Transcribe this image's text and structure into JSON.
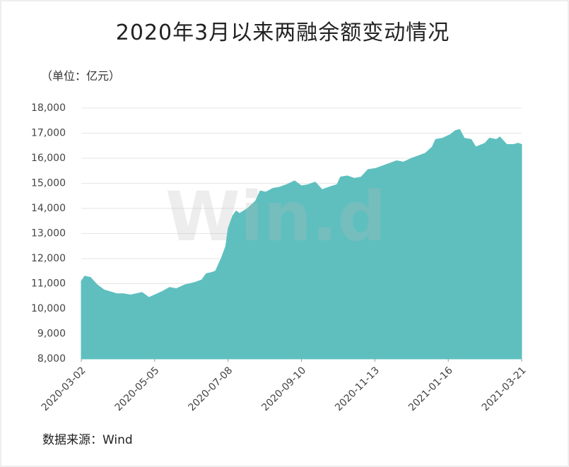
{
  "chart_data": {
    "type": "area",
    "title": "2020年3月以来两融余额变动情况",
    "unit_label": "（单位：亿元）",
    "source": "数据来源：Wind",
    "watermark": "Win.d",
    "color": "#5fbfbf",
    "grid": true,
    "x": [
      "2020-03-02",
      "2020-03-05",
      "2020-03-10",
      "2020-03-13",
      "2020-03-16",
      "2020-03-22",
      "2020-04-02",
      "2020-04-08",
      "2020-04-14",
      "2020-04-24",
      "2020-04-30",
      "2020-05-12",
      "2020-05-18",
      "2020-05-24",
      "2020-05-31",
      "2020-06-09",
      "2020-06-15",
      "2020-06-19",
      "2020-06-24",
      "2020-06-27",
      "2020-07-02",
      "2020-07-06",
      "2020-07-08",
      "2020-07-12",
      "2020-07-15",
      "2020-07-18",
      "2020-07-25",
      "2020-08-01",
      "2020-08-05",
      "2020-08-10",
      "2020-08-16",
      "2020-08-22",
      "2020-08-28",
      "2020-09-04",
      "2020-09-10",
      "2020-09-16",
      "2020-09-22",
      "2020-09-28",
      "2020-10-04",
      "2020-10-11",
      "2020-10-14",
      "2020-10-20",
      "2020-10-26",
      "2020-11-01",
      "2020-11-07",
      "2020-11-14",
      "2020-11-20",
      "2020-11-26",
      "2020-12-02",
      "2020-12-08",
      "2020-12-15",
      "2020-12-21",
      "2020-12-27",
      "2021-01-02",
      "2021-01-05",
      "2021-01-11",
      "2021-01-18",
      "2021-01-22",
      "2021-01-26",
      "2021-01-30",
      "2021-02-05",
      "2021-02-09",
      "2021-02-17",
      "2021-02-21",
      "2021-02-27",
      "2021-03-02",
      "2021-03-08",
      "2021-03-14",
      "2021-03-18",
      "2021-03-21"
    ],
    "values": [
      11100,
      11300,
      11250,
      11100,
      10950,
      10750,
      10600,
      10600,
      10550,
      10650,
      10450,
      10700,
      10850,
      10800,
      10950,
      11050,
      11150,
      11400,
      11450,
      11500,
      12000,
      12500,
      13200,
      13700,
      13900,
      13800,
      14000,
      14300,
      14700,
      14650,
      14800,
      14850,
      14950,
      15100,
      14900,
      14950,
      15050,
      14750,
      14850,
      14950,
      15250,
      15300,
      15200,
      15250,
      15550,
      15600,
      15700,
      15800,
      15900,
      15850,
      16000,
      16100,
      16200,
      16450,
      16750,
      16800,
      16950,
      17100,
      17150,
      16800,
      16750,
      16450,
      16600,
      16800,
      16750,
      16850,
      16550,
      16550,
      16600,
      16550
    ],
    "xlim": [
      "2020-03-02",
      "2021-03-21"
    ],
    "xticks": [
      "2020-03-02",
      "2020-05-05",
      "2020-07-08",
      "2020-09-10",
      "2020-11-13",
      "2021-01-16",
      "2021-03-21"
    ],
    "ylim": [
      8000,
      18000
    ],
    "yticks": [
      {
        "value": 8000,
        "label": "8,000"
      },
      {
        "value": 9000,
        "label": "9,000"
      },
      {
        "value": 10000,
        "label": "10,000"
      },
      {
        "value": 11000,
        "label": "11,000"
      },
      {
        "value": 12000,
        "label": "12,000"
      },
      {
        "value": 13000,
        "label": "13,000"
      },
      {
        "value": 14000,
        "label": "14,000"
      },
      {
        "value": 15000,
        "label": "15,000"
      },
      {
        "value": 16000,
        "label": "16,000"
      },
      {
        "value": 17000,
        "label": "17,000"
      },
      {
        "value": 18000,
        "label": "18,000"
      }
    ]
  }
}
